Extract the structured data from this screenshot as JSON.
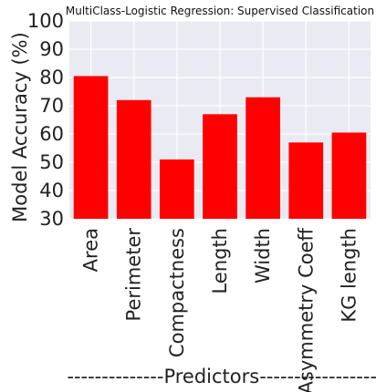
{
  "chart_data": {
    "type": "bar",
    "title": "MultiClass-Logistic Regression:  Supervised Classification",
    "xlabel": "--------------Predictors------------------",
    "ylabel": "Model Accuracy (%)",
    "categories": [
      "Area",
      "Perimeter",
      "Compactness",
      "Length",
      "Width",
      "Asymmetry Coeff",
      "KG length"
    ],
    "values": [
      80.5,
      72,
      51,
      67,
      73,
      57,
      60.5
    ],
    "ylim": [
      30,
      100
    ],
    "yticks": [
      30,
      40,
      50,
      60,
      70,
      80,
      90,
      100
    ],
    "grid": true,
    "colors": {
      "bar": "#ff0000",
      "plot_bg": "#eaeaf2",
      "grid": "#ffffff"
    }
  }
}
